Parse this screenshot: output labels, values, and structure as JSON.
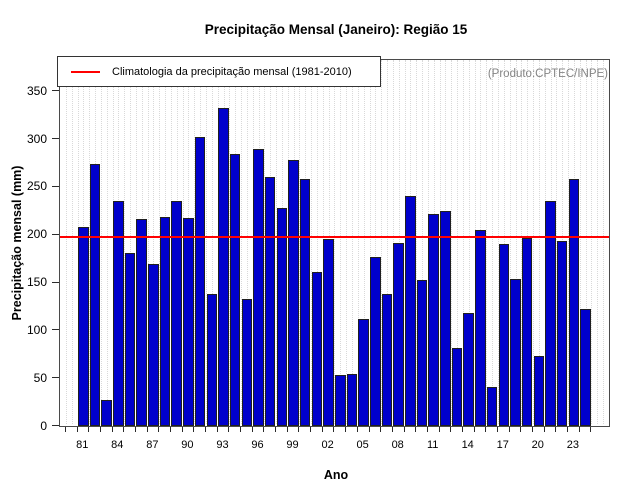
{
  "title": "Precipitação Mensal (Janeiro): Região 15",
  "annotation": "(Produto:CPTEC/INPE)",
  "chart_data": {
    "type": "bar",
    "title": "Precipitação Mensal (Janeiro): Região 15",
    "xlabel": "Ano",
    "ylabel": "Precipitação mensal (mm)",
    "years": [
      1981,
      1982,
      1983,
      1984,
      1985,
      1986,
      1987,
      1988,
      1989,
      1990,
      1991,
      1992,
      1993,
      1994,
      1995,
      1996,
      1997,
      1998,
      1999,
      2000,
      2001,
      2002,
      2003,
      2004,
      2005,
      2006,
      2007,
      2008,
      2009,
      2010,
      2011,
      2012,
      2013,
      2014,
      2015,
      2016,
      2017,
      2018,
      2019,
      2020,
      2021,
      2022,
      2023,
      2024
    ],
    "values": [
      208,
      274,
      27,
      235,
      181,
      216,
      169,
      218,
      235,
      217,
      302,
      138,
      332,
      284,
      133,
      290,
      260,
      228,
      278,
      258,
      161,
      196,
      53,
      54,
      112,
      177,
      138,
      191,
      240,
      153,
      222,
      225,
      82,
      118,
      205,
      41,
      190,
      154,
      197,
      73,
      235,
      193,
      258,
      122
    ],
    "x_tick_labels": [
      "81",
      "84",
      "87",
      "90",
      "93",
      "96",
      "99",
      "02",
      "05",
      "08",
      "11",
      "14",
      "17",
      "20",
      "23"
    ],
    "x_tick_label_step": 3,
    "y_ticks": [
      0,
      50,
      100,
      150,
      200,
      250,
      300,
      350
    ],
    "ylim": [
      0,
      380
    ],
    "grid": "vertical-dotted",
    "legend_position": "top-left",
    "legend": [
      {
        "label": "Climatologia da precipitação mensal (1981-2010)",
        "color": "#FF0000"
      }
    ],
    "reference_line": {
      "name": "climatologia",
      "value": 198,
      "color": "#FF0000"
    },
    "bar_color": "#0000CC",
    "bar_border_color": "#1F1F1F",
    "annotation_color": "#848484"
  }
}
